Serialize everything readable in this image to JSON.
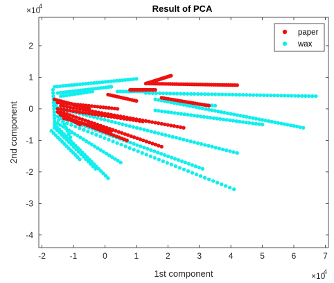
{
  "chart_data": {
    "type": "scatter",
    "title": "Result of PCA",
    "xlabel": "1st component",
    "ylabel": "2nd component",
    "x_exponent_base": "×10",
    "x_exponent_power": "4",
    "y_exponent_base": "×10",
    "y_exponent_power": "4",
    "xlim": [
      -2.1,
      7.1
    ],
    "ylim": [
      -4.4,
      2.9
    ],
    "xticks": [
      -2,
      -1,
      0,
      1,
      2,
      3,
      4,
      5,
      6,
      7
    ],
    "yticks": [
      -4,
      -3,
      -2,
      -1,
      0,
      1,
      2
    ],
    "xtick_labels": [
      "-2",
      "-1",
      "0",
      "1",
      "2",
      "3",
      "4",
      "5",
      "6",
      "7"
    ],
    "ytick_labels": [
      "-4",
      "-3",
      "-2",
      "-1",
      "0",
      "1",
      "2"
    ],
    "legend_position": "top-right",
    "grid": false,
    "series": [
      {
        "name": "paper",
        "color": "#ee1111",
        "rays": [
          {
            "from": [
              1.3,
              0.8
            ],
            "to": [
              2.1,
              1.05
            ],
            "n": 24
          },
          {
            "from": [
              1.4,
              0.8
            ],
            "to": [
              4.2,
              0.75
            ],
            "n": 42
          },
          {
            "from": [
              0.8,
              0.6
            ],
            "to": [
              1.6,
              0.6
            ],
            "n": 18
          },
          {
            "from": [
              1.8,
              0.35
            ],
            "to": [
              3.3,
              0.1
            ],
            "n": 22
          },
          {
            "from": [
              0.1,
              0.45
            ],
            "to": [
              1.0,
              0.25
            ],
            "n": 14
          },
          {
            "from": [
              -1.6,
              0.3
            ],
            "to": [
              -0.5,
              0.0
            ],
            "n": 16
          },
          {
            "from": [
              -1.5,
              0.2
            ],
            "to": [
              0.4,
              0.0
            ],
            "n": 22
          },
          {
            "from": [
              -1.4,
              0.1
            ],
            "to": [
              2.5,
              -0.6
            ],
            "n": 40
          },
          {
            "from": [
              -1.5,
              0.0
            ],
            "to": [
              1.2,
              -0.4
            ],
            "n": 28
          },
          {
            "from": [
              -1.4,
              -0.1
            ],
            "to": [
              1.8,
              -1.2
            ],
            "n": 34
          },
          {
            "from": [
              -1.4,
              -0.2
            ],
            "to": [
              0.7,
              -1.0
            ],
            "n": 26
          },
          {
            "from": [
              -1.3,
              -0.3
            ],
            "to": [
              0.2,
              -0.7
            ],
            "n": 20
          },
          {
            "from": [
              -1.5,
              -0.1
            ],
            "to": [
              -0.8,
              -0.5
            ],
            "n": 12
          }
        ]
      },
      {
        "name": "wax",
        "color": "#11eeee",
        "rays": [
          {
            "from": [
              -1.6,
              0.7
            ],
            "to": [
              1.0,
              0.95
            ],
            "n": 30
          },
          {
            "from": [
              -1.5,
              0.5
            ],
            "to": [
              0.2,
              0.7
            ],
            "n": 22
          },
          {
            "from": [
              -1.4,
              0.4
            ],
            "to": [
              -0.4,
              0.55
            ],
            "n": 12
          },
          {
            "from": [
              0.4,
              0.55
            ],
            "to": [
              1.2,
              0.55
            ],
            "n": 10
          },
          {
            "from": [
              1.3,
              0.5
            ],
            "to": [
              6.7,
              0.4
            ],
            "n": 50
          },
          {
            "from": [
              1.6,
              0.3
            ],
            "to": [
              6.3,
              -0.6
            ],
            "n": 48
          },
          {
            "from": [
              2.3,
              0.2
            ],
            "to": [
              3.5,
              0.1
            ],
            "n": 12
          },
          {
            "from": [
              1.6,
              -0.05
            ],
            "to": [
              5.0,
              -0.5
            ],
            "n": 34
          },
          {
            "from": [
              -1.6,
              0.05
            ],
            "to": [
              4.2,
              -1.4
            ],
            "n": 52
          },
          {
            "from": [
              -1.6,
              -0.2
            ],
            "to": [
              3.1,
              -1.9
            ],
            "n": 44
          },
          {
            "from": [
              -1.6,
              -0.3
            ],
            "to": [
              4.1,
              -2.55
            ],
            "n": 44
          },
          {
            "from": [
              -1.6,
              -0.4
            ],
            "to": [
              0.5,
              -1.7
            ],
            "n": 24
          },
          {
            "from": [
              -1.6,
              -0.5
            ],
            "to": [
              0.1,
              -2.2
            ],
            "n": 24
          },
          {
            "from": [
              -1.6,
              -0.6
            ],
            "to": [
              -0.3,
              -1.9
            ],
            "n": 18
          },
          {
            "from": [
              -1.7,
              -0.7
            ],
            "to": [
              -0.8,
              -1.6
            ],
            "n": 14
          },
          {
            "from": [
              -1.6,
              0.2
            ],
            "to": [
              -1.1,
              -0.9
            ],
            "n": 12
          },
          {
            "from": [
              -1.65,
              0.6
            ],
            "to": [
              -1.6,
              -0.3
            ],
            "n": 10
          }
        ]
      }
    ]
  }
}
